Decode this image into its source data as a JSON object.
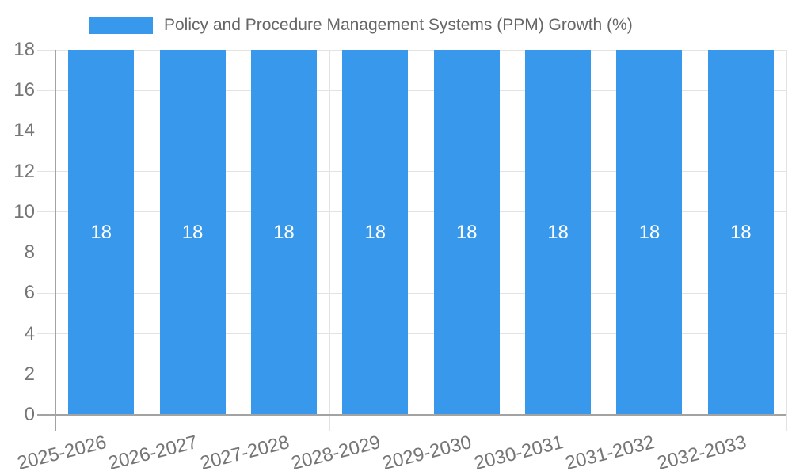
{
  "legend": {
    "label": "Policy and Procedure Management Systems (PPM) Growth (%)"
  },
  "chart_data": {
    "type": "bar",
    "title": "Policy and Procedure Management Systems (PPM) Growth (%)",
    "categories": [
      "2025-2026",
      "2026-2027",
      "2027-2028",
      "2028-2029",
      "2029-2030",
      "2030-2031",
      "2031-2032",
      "2032-2033"
    ],
    "series": [
      {
        "name": "Policy and Procedure Management Systems (PPM) Growth (%)",
        "values": [
          18,
          18,
          18,
          18,
          18,
          18,
          18,
          18
        ]
      }
    ],
    "bar_value_labels": [
      "18",
      "18",
      "18",
      "18",
      "18",
      "18",
      "18",
      "18"
    ],
    "xlabel": "",
    "ylabel": "",
    "ylim": [
      0,
      18
    ],
    "yticks": [
      0,
      2,
      4,
      6,
      8,
      10,
      12,
      14,
      16,
      18
    ],
    "grid": true,
    "legend_position": "top",
    "colors": {
      "bar": "#3899EC",
      "bar_label": "#FFFFFF",
      "legend_text": "#666666",
      "tick_text": "#757575",
      "grid_line": "#E3E3E3",
      "axis_line": "#A3A3A3",
      "background": "#FFFFFF"
    }
  }
}
